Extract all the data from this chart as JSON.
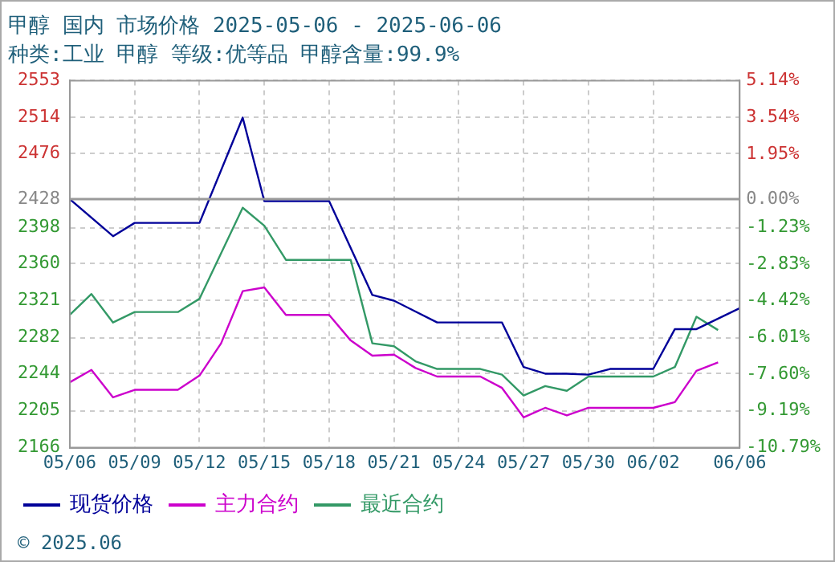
{
  "chart_data": {
    "type": "line",
    "title": "甲醇 国内 市场价格 2025-05-06 - 2025-06-06",
    "subtitle": "种类:工业 甲醇 等级:优等品 甲醇含量:99.9%",
    "xlim": [
      "2025-05-06",
      "2025-06-06"
    ],
    "xticks": [
      {
        "value": "2025-05-06",
        "label": "05/06"
      },
      {
        "value": "2025-05-09",
        "label": "05/09"
      },
      {
        "value": "2025-05-12",
        "label": "05/12"
      },
      {
        "value": "2025-05-15",
        "label": "05/15"
      },
      {
        "value": "2025-05-18",
        "label": "05/18"
      },
      {
        "value": "2025-05-21",
        "label": "05/21"
      },
      {
        "value": "2025-05-24",
        "label": "05/24"
      },
      {
        "value": "2025-05-27",
        "label": "05/27"
      },
      {
        "value": "2025-05-30",
        "label": "05/30"
      },
      {
        "value": "2025-06-02",
        "label": "06/02"
      },
      {
        "value": "2025-06-06",
        "label": "06/06"
      }
    ],
    "ylim": [
      2166,
      2553
    ],
    "yticks": [
      2166,
      2205,
      2244,
      2282,
      2321,
      2360,
      2398,
      2428,
      2476,
      2514,
      2553
    ],
    "y2lim": [
      -10.79,
      5.14
    ],
    "y2ticks": [
      {
        "value": -10.79,
        "label": "-10.79%"
      },
      {
        "value": -9.19,
        "label": "-9.19%"
      },
      {
        "value": -7.6,
        "label": "-7.60%"
      },
      {
        "value": -6.01,
        "label": "-6.01%"
      },
      {
        "value": -4.42,
        "label": "-4.42%"
      },
      {
        "value": -2.83,
        "label": "-2.83%"
      },
      {
        "value": -1.23,
        "label": "-1.23%"
      },
      {
        "value": 0,
        "label": "0.00%"
      },
      {
        "value": 1.95,
        "label": "1.95%"
      },
      {
        "value": 3.54,
        "label": "3.54%"
      },
      {
        "value": 5.14,
        "label": "5.14%"
      }
    ],
    "grid": true,
    "legend": "bottom",
    "marker": "none",
    "line_style": "solid",
    "ref_lines": [
      {
        "axis": "y",
        "value": 2428,
        "color": "#999999",
        "line_style": "solid"
      }
    ],
    "annotations": [
      "© 2025.06"
    ],
    "series": [
      {
        "name": "现货价格",
        "color": "#000099",
        "x": [
          "2025-05-06",
          "2025-05-08",
          "2025-05-09",
          "2025-05-12",
          "2025-05-14",
          "2025-05-15",
          "2025-05-18",
          "2025-05-20",
          "2025-05-21",
          "2025-05-23",
          "2025-05-26",
          "2025-05-27",
          "2025-05-28",
          "2025-05-29",
          "2025-05-30",
          "2025-05-31",
          "2025-06-02",
          "2025-06-03",
          "2025-06-04",
          "2025-06-06"
        ],
        "values": [
          2428,
          2389,
          2403,
          2403,
          2514,
          2426,
          2426,
          2327,
          2321,
          2298,
          2298,
          2251,
          2244,
          2244,
          2243,
          2249,
          2249,
          2291,
          2291,
          2313
        ]
      },
      {
        "name": "主力合约",
        "color": "#cc00cc",
        "x": [
          "2025-05-06",
          "2025-05-07",
          "2025-05-08",
          "2025-05-09",
          "2025-05-11",
          "2025-05-12",
          "2025-05-13",
          "2025-05-14",
          "2025-05-15",
          "2025-05-16",
          "2025-05-18",
          "2025-05-19",
          "2025-05-20",
          "2025-05-21",
          "2025-05-22",
          "2025-05-23",
          "2025-05-25",
          "2025-05-26",
          "2025-05-27",
          "2025-05-28",
          "2025-05-29",
          "2025-05-30",
          "2025-06-02",
          "2025-06-03",
          "2025-06-04",
          "2025-06-05"
        ],
        "values": [
          2235,
          2248,
          2219,
          2227,
          2227,
          2242,
          2276,
          2331,
          2335,
          2306,
          2306,
          2279,
          2263,
          2264,
          2250,
          2241,
          2241,
          2229,
          2198,
          2208,
          2200,
          2208,
          2208,
          2214,
          2247,
          2256
        ]
      },
      {
        "name": "最近合约",
        "color": "#339966",
        "x": [
          "2025-05-06",
          "2025-05-07",
          "2025-05-08",
          "2025-05-09",
          "2025-05-11",
          "2025-05-12",
          "2025-05-14",
          "2025-05-15",
          "2025-05-16",
          "2025-05-19",
          "2025-05-20",
          "2025-05-21",
          "2025-05-22",
          "2025-05-23",
          "2025-05-25",
          "2025-05-26",
          "2025-05-27",
          "2025-05-28",
          "2025-05-29",
          "2025-05-30",
          "2025-06-02",
          "2025-06-03",
          "2025-06-04",
          "2025-06-05"
        ],
        "values": [
          2306,
          2328,
          2298,
          2309,
          2309,
          2323,
          2419,
          2400,
          2364,
          2364,
          2276,
          2273,
          2257,
          2249,
          2249,
          2243,
          2221,
          2231,
          2226,
          2241,
          2241,
          2251,
          2304,
          2290
        ]
      }
    ]
  }
}
